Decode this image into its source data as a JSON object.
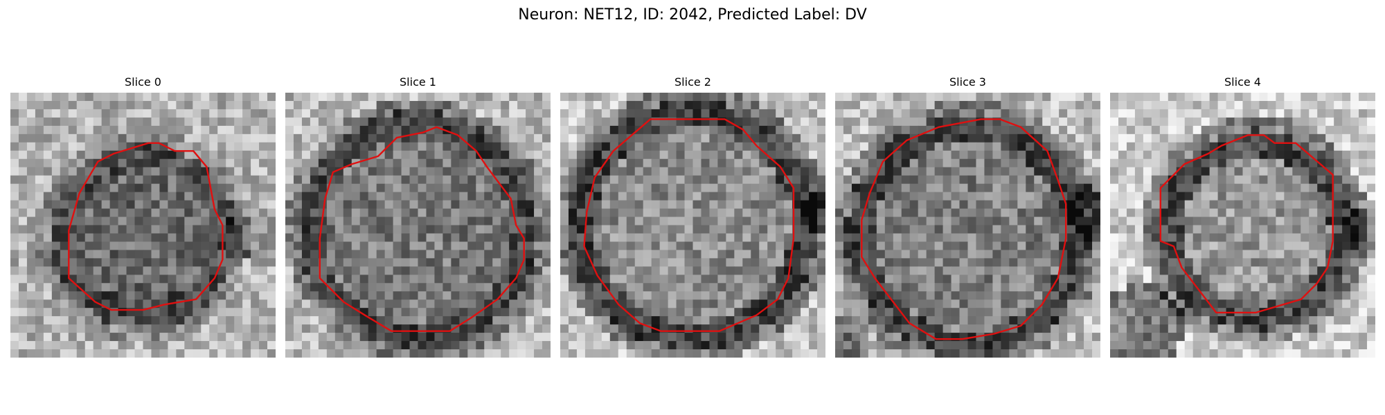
{
  "figure": {
    "title": "Neuron: NET12, ID: 2042, Predicted Label: DV"
  },
  "slices": [
    {
      "label": "Slice 0",
      "image": "grayscale-em-crop",
      "contour_color": "#e01010"
    },
    {
      "label": "Slice 1",
      "image": "grayscale-em-crop",
      "contour_color": "#e01010"
    },
    {
      "label": "Slice 2",
      "image": "grayscale-em-crop",
      "contour_color": "#e01010"
    },
    {
      "label": "Slice 3",
      "image": "grayscale-em-crop",
      "contour_color": "#e01010"
    },
    {
      "label": "Slice 4",
      "image": "grayscale-em-crop",
      "contour_color": "#e01010"
    }
  ]
}
